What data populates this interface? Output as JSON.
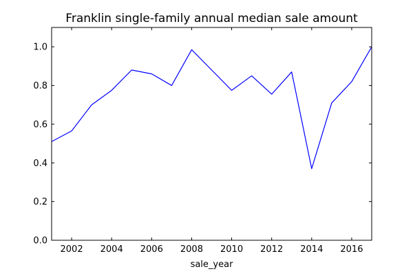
{
  "chart_data": {
    "type": "line",
    "title": "Franklin single-family annual median sale amount",
    "xlabel": "sale_year",
    "ylabel": "",
    "xlim": [
      2001,
      2017
    ],
    "ylim": [
      0.0,
      1.1
    ],
    "grid": false,
    "xticks": [
      2002,
      2004,
      2006,
      2008,
      2010,
      2012,
      2014,
      2016
    ],
    "xtick_labels": [
      "2002",
      "2004",
      "2006",
      "2008",
      "2010",
      "2012",
      "2014",
      "2016"
    ],
    "yticks": [
      0.0,
      0.2,
      0.4,
      0.6,
      0.8,
      1.0
    ],
    "ytick_labels": [
      "0.0",
      "0.2",
      "0.4",
      "0.6",
      "0.8",
      "1.0"
    ],
    "series": [
      {
        "color": "#0000ff",
        "x": [
          2001,
          2002,
          2003,
          2004,
          2005,
          2006,
          2007,
          2008,
          2009,
          2010,
          2011,
          2012,
          2013,
          2014,
          2015,
          2016,
          2017
        ],
        "y": [
          0.51,
          0.565,
          0.7,
          0.775,
          0.88,
          0.86,
          0.8,
          0.985,
          0.88,
          0.775,
          0.85,
          0.755,
          0.87,
          0.37,
          0.71,
          0.82,
          1.0
        ]
      }
    ]
  }
}
